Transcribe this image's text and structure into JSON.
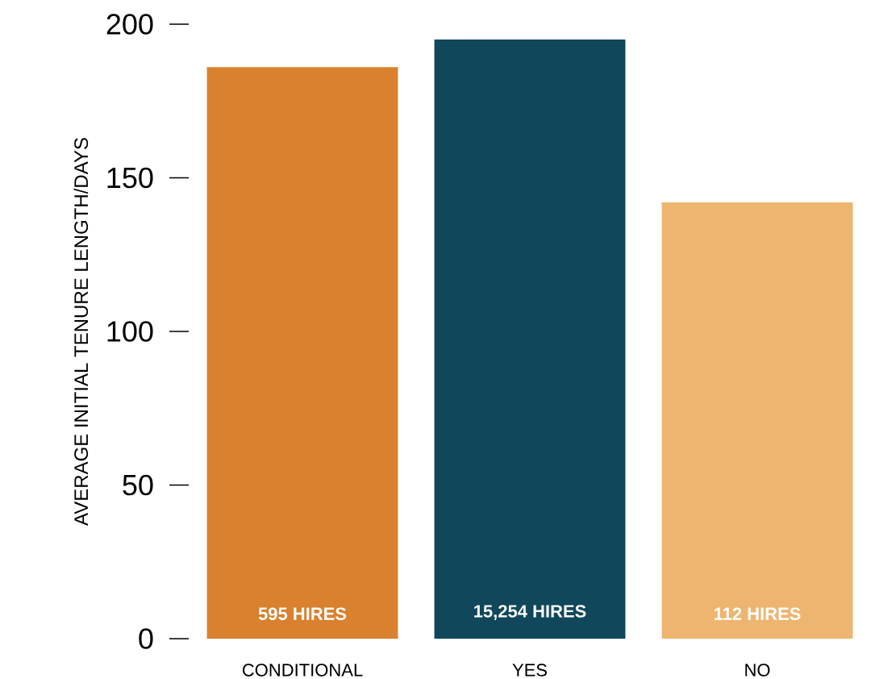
{
  "chart_data": {
    "type": "bar",
    "ylabel": "AVERAGE INITIAL TENURE LENGTH/DAYS",
    "categories": [
      "CONDITIONAL",
      "YES",
      "NO"
    ],
    "values": [
      186,
      195,
      142
    ],
    "colors": [
      "#d9812e",
      "#10475a",
      "#edb570"
    ],
    "ylim": [
      0,
      200
    ],
    "yticks": [
      0,
      50,
      100,
      150,
      200
    ],
    "annotations": [
      "595 HIRES",
      "15,254 HIRES",
      "112 HIRES"
    ]
  }
}
